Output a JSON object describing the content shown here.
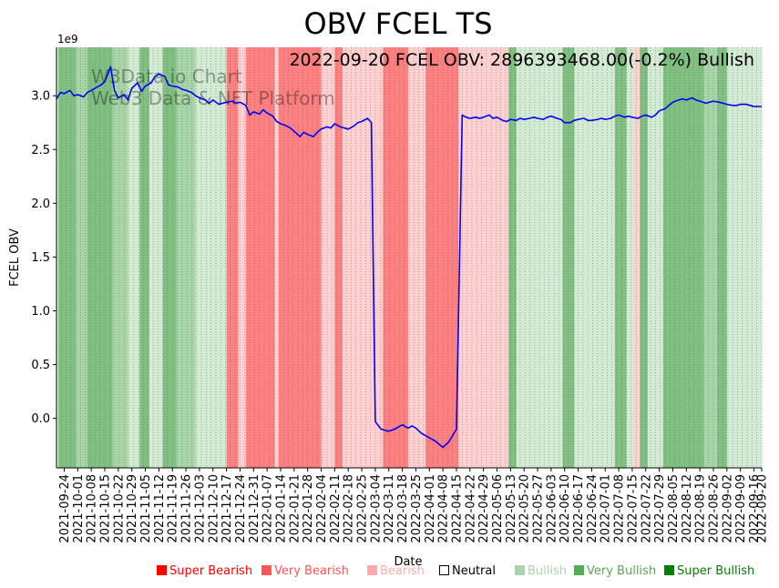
{
  "chart_data": {
    "type": "line",
    "title": "OBV FCEL TS",
    "annotation": "2022-09-20 FCEL OBV: 2896393468.00(-0.2%) Bullish",
    "watermark_lines": [
      "W3Data.io Chart",
      "Web3 Data & NFT Platform"
    ],
    "xlabel": "Date",
    "ylabel": "FCEL OBV",
    "y_multiplier_label": "1e9",
    "y_units": 1000000000,
    "ylim": [
      -0.46,
      3.45
    ],
    "y_ticks": [
      0.0,
      0.5,
      1.0,
      1.5,
      2.0,
      2.5,
      3.0
    ],
    "y_tick_labels": [
      "0.0",
      "0.5",
      "1.0",
      "1.5",
      "2.0",
      "2.5",
      "3.0"
    ],
    "x_start": "2021-09-20",
    "x_end": "2022-09-20",
    "x_tick_labels": [
      "2021-09-24",
      "2021-10-01",
      "2021-10-08",
      "2021-10-15",
      "2021-10-22",
      "2021-10-29",
      "2021-11-05",
      "2021-11-12",
      "2021-11-19",
      "2021-11-26",
      "2021-12-03",
      "2021-12-10",
      "2021-12-17",
      "2021-12-24",
      "2021-12-31",
      "2022-01-07",
      "2022-01-14",
      "2022-01-21",
      "2022-01-28",
      "2022-02-04",
      "2022-02-11",
      "2022-02-18",
      "2022-02-25",
      "2022-03-04",
      "2022-03-11",
      "2022-03-18",
      "2022-03-25",
      "2022-04-01",
      "2022-04-08",
      "2022-04-15",
      "2022-04-22",
      "2022-04-29",
      "2022-05-06",
      "2022-05-13",
      "2022-05-20",
      "2022-05-27",
      "2022-06-03",
      "2022-06-10",
      "2022-06-17",
      "2022-06-24",
      "2022-07-01",
      "2022-07-08",
      "2022-07-15",
      "2022-07-22",
      "2022-07-29",
      "2022-08-05",
      "2022-08-12",
      "2022-08-19",
      "2022-08-26",
      "2022-09-02",
      "2022-09-09",
      "2022-09-16",
      "2022-09-20"
    ],
    "series": [
      {
        "name": "FCEL OBV",
        "color": "#0000ff",
        "points": [
          [
            "2021-09-20",
            2.97
          ],
          [
            "2021-09-22",
            3.03
          ],
          [
            "2021-09-24",
            3.02
          ],
          [
            "2021-09-27",
            3.05
          ],
          [
            "2021-09-29",
            3.0
          ],
          [
            "2021-10-01",
            3.01
          ],
          [
            "2021-10-04",
            2.99
          ],
          [
            "2021-10-06",
            3.03
          ],
          [
            "2021-10-08",
            3.05
          ],
          [
            "2021-10-11",
            3.08
          ],
          [
            "2021-10-13",
            3.1
          ],
          [
            "2021-10-15",
            3.13
          ],
          [
            "2021-10-18",
            3.27
          ],
          [
            "2021-10-20",
            3.05
          ],
          [
            "2021-10-22",
            2.98
          ],
          [
            "2021-10-25",
            3.01
          ],
          [
            "2021-10-27",
            2.96
          ],
          [
            "2021-10-29",
            3.07
          ],
          [
            "2021-11-01",
            3.12
          ],
          [
            "2021-11-03",
            3.04
          ],
          [
            "2021-11-05",
            3.09
          ],
          [
            "2021-11-08",
            3.12
          ],
          [
            "2021-11-10",
            3.18
          ],
          [
            "2021-11-12",
            3.2
          ],
          [
            "2021-11-15",
            3.18
          ],
          [
            "2021-11-17",
            3.1
          ],
          [
            "2021-11-19",
            3.09
          ],
          [
            "2021-11-22",
            3.08
          ],
          [
            "2021-11-24",
            3.06
          ],
          [
            "2021-11-26",
            3.05
          ],
          [
            "2021-11-29",
            3.03
          ],
          [
            "2021-12-01",
            3.0
          ],
          [
            "2021-12-03",
            2.98
          ],
          [
            "2021-12-06",
            2.96
          ],
          [
            "2021-12-08",
            2.93
          ],
          [
            "2021-12-10",
            2.96
          ],
          [
            "2021-12-13",
            2.92
          ],
          [
            "2021-12-15",
            2.93
          ],
          [
            "2021-12-17",
            2.94
          ],
          [
            "2021-12-20",
            2.95
          ],
          [
            "2021-12-22",
            2.93
          ],
          [
            "2021-12-24",
            2.94
          ],
          [
            "2021-12-27",
            2.91
          ],
          [
            "2021-12-29",
            2.82
          ],
          [
            "2021-12-31",
            2.85
          ],
          [
            "2022-01-03",
            2.83
          ],
          [
            "2022-01-05",
            2.87
          ],
          [
            "2022-01-07",
            2.84
          ],
          [
            "2022-01-10",
            2.81
          ],
          [
            "2022-01-12",
            2.76
          ],
          [
            "2022-01-14",
            2.74
          ],
          [
            "2022-01-17",
            2.72
          ],
          [
            "2022-01-19",
            2.7
          ],
          [
            "2022-01-21",
            2.67
          ],
          [
            "2022-01-24",
            2.62
          ],
          [
            "2022-01-26",
            2.66
          ],
          [
            "2022-01-28",
            2.64
          ],
          [
            "2022-01-31",
            2.62
          ],
          [
            "2022-02-02",
            2.66
          ],
          [
            "2022-02-04",
            2.69
          ],
          [
            "2022-02-07",
            2.71
          ],
          [
            "2022-02-09",
            2.7
          ],
          [
            "2022-02-11",
            2.74
          ],
          [
            "2022-02-14",
            2.71
          ],
          [
            "2022-02-16",
            2.7
          ],
          [
            "2022-02-18",
            2.69
          ],
          [
            "2022-02-21",
            2.72
          ],
          [
            "2022-02-23",
            2.75
          ],
          [
            "2022-02-25",
            2.76
          ],
          [
            "2022-02-28",
            2.79
          ],
          [
            "2022-03-02",
            2.75
          ],
          [
            "2022-03-04",
            -0.03
          ],
          [
            "2022-03-07",
            -0.1
          ],
          [
            "2022-03-09",
            -0.11
          ],
          [
            "2022-03-11",
            -0.12
          ],
          [
            "2022-03-14",
            -0.1
          ],
          [
            "2022-03-16",
            -0.08
          ],
          [
            "2022-03-18",
            -0.06
          ],
          [
            "2022-03-21",
            -0.09
          ],
          [
            "2022-03-23",
            -0.07
          ],
          [
            "2022-03-25",
            -0.09
          ],
          [
            "2022-03-28",
            -0.14
          ],
          [
            "2022-03-30",
            -0.16
          ],
          [
            "2022-04-01",
            -0.18
          ],
          [
            "2022-04-04",
            -0.21
          ],
          [
            "2022-04-06",
            -0.24
          ],
          [
            "2022-04-08",
            -0.27
          ],
          [
            "2022-04-11",
            -0.22
          ],
          [
            "2022-04-13",
            -0.16
          ],
          [
            "2022-04-15",
            -0.1
          ],
          [
            "2022-04-18",
            2.82
          ],
          [
            "2022-04-20",
            2.8
          ],
          [
            "2022-04-22",
            2.79
          ],
          [
            "2022-04-25",
            2.8
          ],
          [
            "2022-04-27",
            2.79
          ],
          [
            "2022-04-29",
            2.8
          ],
          [
            "2022-05-02",
            2.82
          ],
          [
            "2022-05-04",
            2.79
          ],
          [
            "2022-05-06",
            2.8
          ],
          [
            "2022-05-09",
            2.77
          ],
          [
            "2022-05-11",
            2.76
          ],
          [
            "2022-05-13",
            2.78
          ],
          [
            "2022-05-16",
            2.77
          ],
          [
            "2022-05-18",
            2.79
          ],
          [
            "2022-05-20",
            2.78
          ],
          [
            "2022-05-23",
            2.79
          ],
          [
            "2022-05-25",
            2.8
          ],
          [
            "2022-05-27",
            2.79
          ],
          [
            "2022-05-30",
            2.78
          ],
          [
            "2022-06-01",
            2.8
          ],
          [
            "2022-06-03",
            2.81
          ],
          [
            "2022-06-06",
            2.79
          ],
          [
            "2022-06-08",
            2.78
          ],
          [
            "2022-06-10",
            2.75
          ],
          [
            "2022-06-13",
            2.75
          ],
          [
            "2022-06-15",
            2.77
          ],
          [
            "2022-06-17",
            2.78
          ],
          [
            "2022-06-20",
            2.79
          ],
          [
            "2022-06-22",
            2.77
          ],
          [
            "2022-06-24",
            2.77
          ],
          [
            "2022-06-27",
            2.78
          ],
          [
            "2022-06-29",
            2.79
          ],
          [
            "2022-07-01",
            2.78
          ],
          [
            "2022-07-04",
            2.79
          ],
          [
            "2022-07-06",
            2.81
          ],
          [
            "2022-07-08",
            2.82
          ],
          [
            "2022-07-11",
            2.8
          ],
          [
            "2022-07-13",
            2.81
          ],
          [
            "2022-07-15",
            2.8
          ],
          [
            "2022-07-18",
            2.79
          ],
          [
            "2022-07-20",
            2.81
          ],
          [
            "2022-07-22",
            2.82
          ],
          [
            "2022-07-25",
            2.8
          ],
          [
            "2022-07-27",
            2.82
          ],
          [
            "2022-07-29",
            2.86
          ],
          [
            "2022-08-01",
            2.88
          ],
          [
            "2022-08-03",
            2.91
          ],
          [
            "2022-08-05",
            2.94
          ],
          [
            "2022-08-08",
            2.96
          ],
          [
            "2022-08-10",
            2.97
          ],
          [
            "2022-08-12",
            2.96
          ],
          [
            "2022-08-15",
            2.98
          ],
          [
            "2022-08-17",
            2.96
          ],
          [
            "2022-08-19",
            2.95
          ],
          [
            "2022-08-22",
            2.93
          ],
          [
            "2022-08-24",
            2.94
          ],
          [
            "2022-08-26",
            2.95
          ],
          [
            "2022-08-29",
            2.94
          ],
          [
            "2022-08-31",
            2.93
          ],
          [
            "2022-09-02",
            2.92
          ],
          [
            "2022-09-05",
            2.91
          ],
          [
            "2022-09-07",
            2.91
          ],
          [
            "2022-09-09",
            2.92
          ],
          [
            "2022-09-12",
            2.92
          ],
          [
            "2022-09-14",
            2.91
          ],
          [
            "2022-09-16",
            2.9
          ],
          [
            "2022-09-20",
            2.9
          ]
        ]
      }
    ],
    "sentiment_colors": {
      "super_bearish": "#ff8080",
      "bearish": "#ffd0d0",
      "bullish": "#d3ebd3",
      "very_bullish": "#a8d5a8",
      "super_bullish": "#80c080"
    },
    "sentiment_bands": [
      {
        "start": "2021-09-20",
        "end": "2021-09-21",
        "level": "bullish"
      },
      {
        "start": "2021-09-21",
        "end": "2021-09-30",
        "level": "super_bullish"
      },
      {
        "start": "2021-09-30",
        "end": "2021-10-06",
        "level": "very_bullish"
      },
      {
        "start": "2021-10-06",
        "end": "2021-10-19",
        "level": "super_bullish"
      },
      {
        "start": "2021-10-19",
        "end": "2021-10-27",
        "level": "very_bullish"
      },
      {
        "start": "2021-10-27",
        "end": "2021-11-02",
        "level": "bullish"
      },
      {
        "start": "2021-11-02",
        "end": "2021-11-07",
        "level": "super_bullish"
      },
      {
        "start": "2021-11-07",
        "end": "2021-11-14",
        "level": "bullish"
      },
      {
        "start": "2021-11-14",
        "end": "2021-11-21",
        "level": "super_bullish"
      },
      {
        "start": "2021-11-21",
        "end": "2021-12-01",
        "level": "very_bullish"
      },
      {
        "start": "2021-12-01",
        "end": "2021-12-17",
        "level": "bullish"
      },
      {
        "start": "2021-12-17",
        "end": "2021-12-23",
        "level": "super_bearish"
      },
      {
        "start": "2021-12-23",
        "end": "2021-12-27",
        "level": "bearish"
      },
      {
        "start": "2021-12-27",
        "end": "2022-01-11",
        "level": "super_bearish"
      },
      {
        "start": "2022-01-11",
        "end": "2022-01-13",
        "level": "bearish"
      },
      {
        "start": "2022-01-13",
        "end": "2022-02-04",
        "level": "super_bearish"
      },
      {
        "start": "2022-02-04",
        "end": "2022-02-11",
        "level": "bearish"
      },
      {
        "start": "2022-02-11",
        "end": "2022-02-15",
        "level": "super_bearish"
      },
      {
        "start": "2022-02-15",
        "end": "2022-03-08",
        "level": "bearish"
      },
      {
        "start": "2022-03-08",
        "end": "2022-03-21",
        "level": "super_bearish"
      },
      {
        "start": "2022-03-21",
        "end": "2022-03-30",
        "level": "bearish"
      },
      {
        "start": "2022-03-30",
        "end": "2022-04-16",
        "level": "super_bearish"
      },
      {
        "start": "2022-04-16",
        "end": "2022-05-12",
        "level": "bearish"
      },
      {
        "start": "2022-05-12",
        "end": "2022-05-16",
        "level": "super_bullish"
      },
      {
        "start": "2022-05-16",
        "end": "2022-06-09",
        "level": "bullish"
      },
      {
        "start": "2022-06-09",
        "end": "2022-06-15",
        "level": "super_bullish"
      },
      {
        "start": "2022-06-15",
        "end": "2022-07-06",
        "level": "bullish"
      },
      {
        "start": "2022-07-06",
        "end": "2022-07-12",
        "level": "super_bullish"
      },
      {
        "start": "2022-07-12",
        "end": "2022-07-16",
        "level": "bullish"
      },
      {
        "start": "2022-07-16",
        "end": "2022-07-19",
        "level": "bearish"
      },
      {
        "start": "2022-07-19",
        "end": "2022-07-23",
        "level": "super_bullish"
      },
      {
        "start": "2022-07-23",
        "end": "2022-07-31",
        "level": "bullish"
      },
      {
        "start": "2022-07-31",
        "end": "2022-08-21",
        "level": "super_bullish"
      },
      {
        "start": "2022-08-21",
        "end": "2022-08-28",
        "level": "very_bullish"
      },
      {
        "start": "2022-08-28",
        "end": "2022-09-02",
        "level": "super_bullish"
      },
      {
        "start": "2022-09-02",
        "end": "2022-09-20",
        "level": "bullish"
      }
    ],
    "legend": [
      {
        "label": "Super Bearish",
        "color": "#ff0000",
        "box": "filled"
      },
      {
        "label": "Very Bearish",
        "color": "#ff5555",
        "box": "filled"
      },
      {
        "label": "Bearish",
        "color": "#ffaaaa",
        "box": "filled"
      },
      {
        "label": "Neutral",
        "color": "#000000",
        "box": "hollow"
      },
      {
        "label": "Bullish",
        "color": "#aad5aa",
        "box": "filled"
      },
      {
        "label": "Very Bullish",
        "color": "#55aa55",
        "box": "filled"
      },
      {
        "label": "Super Bullish",
        "color": "#008000",
        "box": "filled"
      }
    ]
  }
}
